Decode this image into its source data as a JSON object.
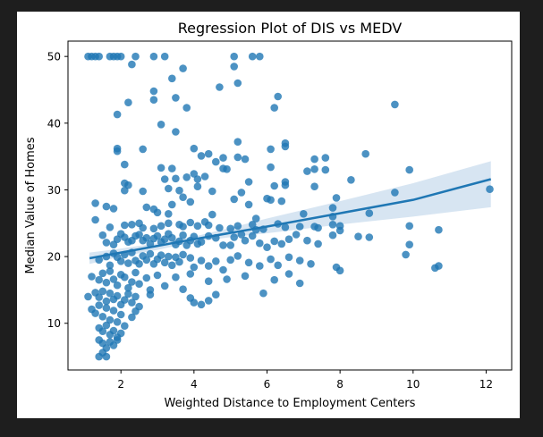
{
  "chart_data": {
    "type": "scatter",
    "title": "Regression Plot of DIS vs MEDV",
    "xlabel": "Weighted Distance to Employment Centers",
    "ylabel": "Median Value of Homes",
    "xlim": [
      0.55,
      12.7
    ],
    "ylim": [
      3.0,
      52.3
    ],
    "xticks": [
      2,
      4,
      6,
      8,
      10,
      12
    ],
    "yticks": [
      10,
      20,
      30,
      40,
      50
    ],
    "grid": false,
    "legend": "none",
    "series": [
      {
        "points": [
          [
            1.1,
            50
          ],
          [
            1.2,
            50
          ],
          [
            1.3,
            50
          ],
          [
            1.4,
            50
          ],
          [
            1.7,
            50
          ],
          [
            1.8,
            50
          ],
          [
            1.9,
            50
          ],
          [
            2.0,
            50
          ],
          [
            2.4,
            50
          ],
          [
            2.9,
            50
          ],
          [
            3.2,
            50
          ],
          [
            5.1,
            50
          ],
          [
            5.6,
            50
          ],
          [
            5.8,
            50
          ],
          [
            2.3,
            48.8
          ],
          [
            5.1,
            48.5
          ],
          [
            3.7,
            48.2
          ],
          [
            3.4,
            46.7
          ],
          [
            5.2,
            46
          ],
          [
            4.7,
            45.4
          ],
          [
            2.9,
            44.8
          ],
          [
            6.3,
            44
          ],
          [
            3.5,
            43.8
          ],
          [
            2.2,
            43.1
          ],
          [
            3.8,
            42.3
          ],
          [
            2.9,
            43.5
          ],
          [
            6.2,
            42.3
          ],
          [
            9.5,
            42.8
          ],
          [
            1.9,
            41.3
          ],
          [
            3.1,
            39.8
          ],
          [
            3.5,
            38.7
          ],
          [
            2.6,
            36.1
          ],
          [
            1.9,
            36.2
          ],
          [
            1.9,
            35.8
          ],
          [
            4.0,
            36.2
          ],
          [
            4.2,
            35.1
          ],
          [
            4.4,
            35.4
          ],
          [
            5.2,
            37.2
          ],
          [
            6.1,
            36.1
          ],
          [
            6.5,
            37
          ],
          [
            6.5,
            36.5
          ],
          [
            5.2,
            34.9
          ],
          [
            5.4,
            34.6
          ],
          [
            4.8,
            34.8
          ],
          [
            4.6,
            34.2
          ],
          [
            7.6,
            34.8
          ],
          [
            7.3,
            34.6
          ],
          [
            8.7,
            35.4
          ],
          [
            2.1,
            33.8
          ],
          [
            3.1,
            33.3
          ],
          [
            3.4,
            33.2
          ],
          [
            4.0,
            32.4
          ],
          [
            4.3,
            32
          ],
          [
            4.1,
            31.6
          ],
          [
            4.8,
            33.2
          ],
          [
            4.9,
            33.1
          ],
          [
            6.1,
            33.4
          ],
          [
            7.1,
            32.8
          ],
          [
            7.3,
            33.1
          ],
          [
            7.6,
            33
          ],
          [
            9.9,
            33
          ],
          [
            2.1,
            31
          ],
          [
            2.2,
            30.7
          ],
          [
            3.2,
            31.6
          ],
          [
            3.3,
            30.2
          ],
          [
            3.5,
            31.7
          ],
          [
            3.6,
            29.9
          ],
          [
            3.8,
            31.9
          ],
          [
            4.1,
            30.5
          ],
          [
            4.5,
            29.8
          ],
          [
            5.3,
            29.6
          ],
          [
            5.5,
            31.2
          ],
          [
            6.2,
            30.6
          ],
          [
            6.5,
            31.2
          ],
          [
            6.5,
            30.7
          ],
          [
            7.3,
            30.5
          ],
          [
            8.3,
            31.5
          ],
          [
            1.3,
            28.0
          ],
          [
            1.6,
            27.5
          ],
          [
            1.8,
            27.2
          ],
          [
            2.1,
            29.9
          ],
          [
            2.6,
            29.8
          ],
          [
            2.7,
            27.4
          ],
          [
            2.9,
            27.1
          ],
          [
            3.0,
            26.6
          ],
          [
            3.3,
            26.4
          ],
          [
            3.4,
            27.8
          ],
          [
            3.7,
            28.9
          ],
          [
            3.9,
            28.2
          ],
          [
            4.5,
            26.3
          ],
          [
            5.1,
            28.6
          ],
          [
            5.5,
            27.8
          ],
          [
            5.7,
            25.7
          ],
          [
            6.0,
            28.7
          ],
          [
            6.1,
            28.5
          ],
          [
            6.4,
            28.3
          ],
          [
            7.0,
            26.4
          ],
          [
            7.9,
            28.8
          ],
          [
            7.8,
            27.3
          ],
          [
            7.8,
            26.0
          ],
          [
            8.8,
            26.5
          ],
          [
            9.5,
            29.6
          ],
          [
            1.3,
            25.5
          ],
          [
            1.7,
            24.4
          ],
          [
            2.1,
            24.7
          ],
          [
            2.3,
            24.8
          ],
          [
            2.5,
            25.0
          ],
          [
            2.6,
            24.3
          ],
          [
            2.9,
            24.2
          ],
          [
            3.1,
            24.6
          ],
          [
            3.3,
            25.0
          ],
          [
            3.6,
            24.8
          ],
          [
            3.7,
            24.5
          ],
          [
            3.9,
            25.1
          ],
          [
            4.1,
            24.6
          ],
          [
            4.3,
            25.2
          ],
          [
            4.4,
            24.7
          ],
          [
            4.7,
            24.3
          ],
          [
            5.0,
            24.2
          ],
          [
            5.2,
            24.6
          ],
          [
            5.6,
            24.8
          ],
          [
            5.7,
            24.0
          ],
          [
            5.9,
            24.1
          ],
          [
            6.3,
            24.9
          ],
          [
            6.5,
            24.4
          ],
          [
            6.9,
            24.5
          ],
          [
            7.3,
            24.5
          ],
          [
            7.4,
            24.3
          ],
          [
            7.8,
            24.8
          ],
          [
            8.0,
            24.6
          ],
          [
            9.9,
            24.6
          ],
          [
            10.7,
            24.0
          ],
          [
            1.5,
            23.2
          ],
          [
            1.6,
            22.1
          ],
          [
            1.8,
            21.8
          ],
          [
            1.9,
            22.6
          ],
          [
            2.0,
            23.4
          ],
          [
            2.1,
            22.9
          ],
          [
            2.2,
            22.2
          ],
          [
            2.3,
            22.4
          ],
          [
            2.4,
            23.1
          ],
          [
            2.5,
            23.3
          ],
          [
            2.6,
            22.4
          ],
          [
            2.7,
            22.8
          ],
          [
            2.8,
            21.9
          ],
          [
            2.9,
            22.7
          ],
          [
            3.0,
            23.1
          ],
          [
            3.1,
            22.2
          ],
          [
            3.2,
            22.6
          ],
          [
            3.3,
            23.4
          ],
          [
            3.4,
            22.8
          ],
          [
            3.5,
            21.8
          ],
          [
            3.6,
            22.3
          ],
          [
            3.7,
            23.2
          ],
          [
            3.8,
            21.7
          ],
          [
            3.9,
            22.4
          ],
          [
            4.0,
            23.0
          ],
          [
            4.1,
            21.9
          ],
          [
            4.2,
            22.2
          ],
          [
            4.4,
            23.1
          ],
          [
            4.6,
            22.8
          ],
          [
            4.8,
            21.7
          ],
          [
            5.0,
            21.7
          ],
          [
            5.1,
            22.9
          ],
          [
            5.3,
            23.3
          ],
          [
            5.4,
            22.4
          ],
          [
            5.6,
            23.1
          ],
          [
            5.8,
            22.0
          ],
          [
            6.0,
            21.4
          ],
          [
            6.2,
            22.3
          ],
          [
            6.4,
            21.9
          ],
          [
            6.6,
            22.6
          ],
          [
            6.8,
            23.3
          ],
          [
            7.1,
            22.4
          ],
          [
            7.4,
            21.9
          ],
          [
            7.8,
            23.2
          ],
          [
            8.0,
            23.9
          ],
          [
            8.5,
            23.0
          ],
          [
            8.8,
            22.9
          ],
          [
            9.9,
            21.8
          ],
          [
            1.4,
            19.5
          ],
          [
            1.6,
            20.0
          ],
          [
            1.7,
            18.7
          ],
          [
            1.8,
            20.5
          ],
          [
            1.9,
            19.9
          ],
          [
            2.0,
            19.3
          ],
          [
            2.1,
            20.3
          ],
          [
            2.2,
            19.0
          ],
          [
            2.3,
            20.6
          ],
          [
            2.4,
            19.4
          ],
          [
            2.5,
            18.9
          ],
          [
            2.6,
            20.1
          ],
          [
            2.7,
            19.5
          ],
          [
            2.8,
            20.4
          ],
          [
            2.9,
            18.9
          ],
          [
            3.0,
            19.6
          ],
          [
            3.1,
            20.2
          ],
          [
            3.2,
            19.1
          ],
          [
            3.3,
            20.0
          ],
          [
            3.4,
            18.7
          ],
          [
            3.5,
            19.9
          ],
          [
            3.6,
            19.2
          ],
          [
            3.7,
            20.3
          ],
          [
            3.9,
            19.8
          ],
          [
            4.0,
            18.4
          ],
          [
            4.2,
            19.4
          ],
          [
            4.4,
            18.6
          ],
          [
            4.6,
            19.3
          ],
          [
            4.8,
            18.0
          ],
          [
            5.0,
            19.5
          ],
          [
            5.2,
            20.1
          ],
          [
            5.5,
            19.1
          ],
          [
            5.8,
            18.6
          ],
          [
            6.1,
            19.6
          ],
          [
            6.3,
            18.7
          ],
          [
            6.6,
            19.9
          ],
          [
            6.9,
            19.4
          ],
          [
            7.2,
            18.9
          ],
          [
            7.9,
            18.4
          ],
          [
            8.0,
            17.9
          ],
          [
            9.8,
            20.3
          ],
          [
            10.6,
            18.3
          ],
          [
            10.7,
            18.6
          ],
          [
            1.2,
            17.0
          ],
          [
            1.4,
            16.5
          ],
          [
            1.5,
            17.5
          ],
          [
            1.6,
            16.1
          ],
          [
            1.7,
            17.8
          ],
          [
            1.8,
            16.6
          ],
          [
            1.9,
            15.7
          ],
          [
            2.0,
            17.3
          ],
          [
            2.1,
            16.9
          ],
          [
            2.2,
            15.3
          ],
          [
            2.3,
            16.2
          ],
          [
            2.4,
            17.6
          ],
          [
            2.5,
            15.9
          ],
          [
            2.7,
            16.8
          ],
          [
            2.8,
            15.0
          ],
          [
            3.0,
            17.2
          ],
          [
            3.2,
            15.6
          ],
          [
            3.5,
            16.9
          ],
          [
            3.7,
            15.1
          ],
          [
            3.9,
            17.4
          ],
          [
            4.4,
            16.3
          ],
          [
            4.6,
            14.3
          ],
          [
            4.9,
            16.6
          ],
          [
            5.4,
            17.1
          ],
          [
            5.9,
            14.5
          ],
          [
            6.2,
            16.5
          ],
          [
            6.6,
            17.4
          ],
          [
            6.9,
            16.0
          ],
          [
            1.1,
            14.0
          ],
          [
            1.3,
            14.6
          ],
          [
            1.4,
            13.9
          ],
          [
            1.5,
            14.8
          ],
          [
            1.6,
            13.3
          ],
          [
            1.7,
            14.5
          ],
          [
            1.8,
            13.6
          ],
          [
            1.9,
            14.1
          ],
          [
            2.0,
            12.8
          ],
          [
            2.1,
            13.5
          ],
          [
            2.2,
            14.4
          ],
          [
            2.3,
            13.1
          ],
          [
            2.4,
            14.0
          ],
          [
            2.5,
            12.5
          ],
          [
            2.8,
            14.3
          ],
          [
            3.9,
            13.8
          ],
          [
            4.0,
            13.1
          ],
          [
            4.4,
            13.4
          ],
          [
            4.2,
            12.8
          ],
          [
            1.2,
            12.1
          ],
          [
            1.3,
            11.5
          ],
          [
            1.4,
            12.7
          ],
          [
            1.5,
            11.0
          ],
          [
            1.6,
            12.3
          ],
          [
            1.7,
            10.5
          ],
          [
            1.8,
            11.9
          ],
          [
            1.9,
            10.2
          ],
          [
            2.0,
            11.3
          ],
          [
            2.1,
            9.6
          ],
          [
            2.3,
            10.9
          ],
          [
            2.4,
            11.8
          ],
          [
            1.4,
            9.3
          ],
          [
            1.5,
            8.8
          ],
          [
            1.6,
            9.7
          ],
          [
            1.7,
            8.3
          ],
          [
            1.8,
            8.9
          ],
          [
            1.9,
            7.9
          ],
          [
            2.0,
            8.5
          ],
          [
            1.4,
            7.5
          ],
          [
            1.5,
            7.0
          ],
          [
            1.6,
            6.3
          ],
          [
            1.7,
            7.2
          ],
          [
            1.8,
            6.7
          ],
          [
            1.9,
            7.5
          ],
          [
            1.4,
            5.0
          ],
          [
            1.5,
            5.6
          ],
          [
            1.6,
            5.0
          ],
          [
            12.1,
            30.1
          ]
        ]
      }
    ],
    "regression": {
      "line": [
        [
          1.14,
          19.75
        ],
        [
          2.0,
          20.6
        ],
        [
          4.0,
          22.6
        ],
        [
          6.0,
          24.5
        ],
        [
          8.0,
          26.5
        ],
        [
          10.0,
          28.5
        ],
        [
          12.13,
          31.6
        ]
      ],
      "ci_upper": [
        [
          1.14,
          20.6
        ],
        [
          2.0,
          21.2
        ],
        [
          3.0,
          22.0
        ],
        [
          4.0,
          23.0
        ],
        [
          5.0,
          24.3
        ],
        [
          6.0,
          25.7
        ],
        [
          8.0,
          28.3
        ],
        [
          10.0,
          31.0
        ],
        [
          12.13,
          34.3
        ]
      ],
      "ci_lower": [
        [
          1.14,
          18.9
        ],
        [
          2.0,
          20.0
        ],
        [
          3.0,
          21.0
        ],
        [
          4.0,
          22.2
        ],
        [
          5.0,
          22.9
        ],
        [
          6.0,
          23.5
        ],
        [
          8.0,
          24.8
        ],
        [
          10.0,
          26.0
        ],
        [
          12.13,
          27.4
        ]
      ]
    }
  },
  "colors": {
    "marker": "#1f77b4",
    "line": "#1f77b4",
    "band": "#c9dcee"
  }
}
